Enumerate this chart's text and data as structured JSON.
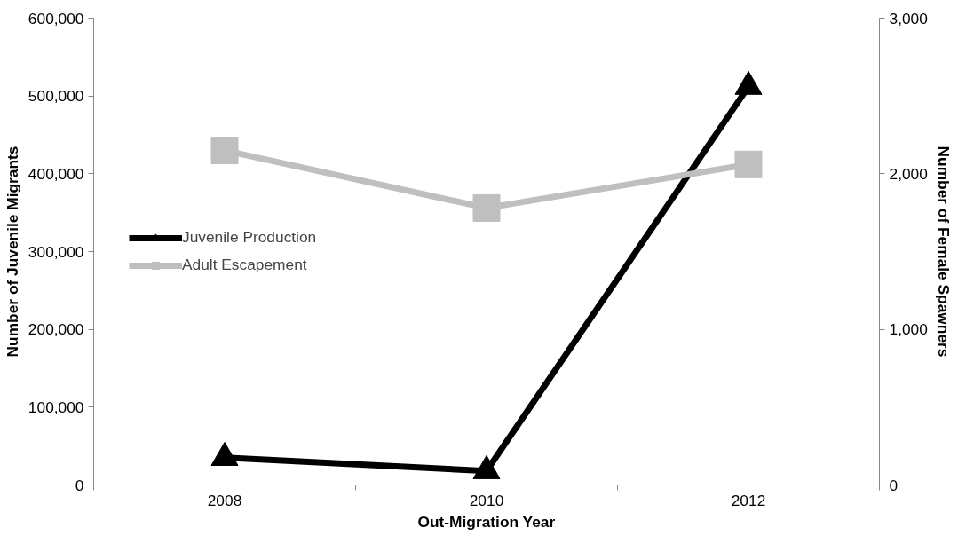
{
  "chart_data": {
    "type": "line",
    "xlabel": "Out-Migration Year",
    "ylabel": "Number of Juvenile Migrants",
    "y2label": "Number of Female Spawners",
    "categories": [
      "2008",
      "2010",
      "2012"
    ],
    "series": [
      {
        "name": "Juvenile Production",
        "color": "#000000",
        "marker": "triangle",
        "values": [
          35000,
          18000,
          512000
        ]
      },
      {
        "name": "Adult Escapement",
        "color": "#bfbfbf",
        "marker": "square",
        "axis": "y2",
        "values": [
          2150,
          1780,
          2060
        ]
      }
    ],
    "ylim": [
      0,
      600000
    ],
    "yticks": [
      0,
      {
        "value": 100000,
        "label": "100,000"
      },
      {
        "value": 200000,
        "label": "200,000"
      },
      {
        "value": 300000,
        "label": "300,000"
      },
      {
        "value": 400000,
        "label": "400,000"
      },
      {
        "value": 500000,
        "label": "500,000"
      },
      {
        "value": 600000,
        "label": "600,000"
      }
    ],
    "y2lim": [
      0,
      3000
    ],
    "y2ticks": [
      0,
      {
        "value": 1000,
        "label": "1,000"
      },
      {
        "value": 2000,
        "label": "2,000"
      },
      {
        "value": 3000,
        "label": "3,000"
      }
    ],
    "grid": false,
    "legend": "left",
    "line_style": "solid"
  }
}
